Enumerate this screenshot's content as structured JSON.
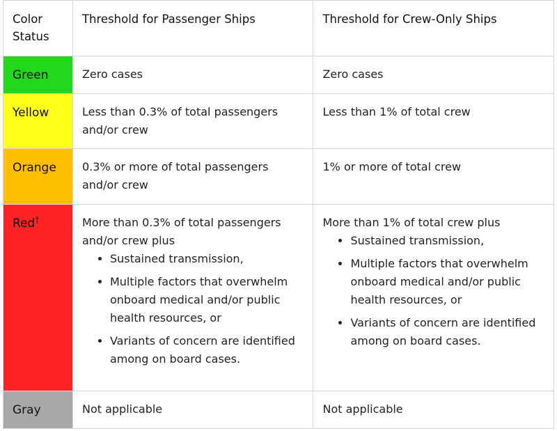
{
  "colors": {
    "green": "#22d81c",
    "yellow": "#ffff1c",
    "orange": "#ffbe00",
    "red": "#ff2323",
    "gray": "#a8a8a8"
  },
  "headers": {
    "status": "Color Status",
    "passenger": "Threshold for Passenger Ships",
    "crew": "Threshold for Crew-Only Ships"
  },
  "rows": {
    "green": {
      "status": "Green",
      "passenger": "Zero cases",
      "crew": "Zero cases"
    },
    "yellow": {
      "status": "Yellow",
      "passenger": "Less than 0.3% of total passengers and/or crew",
      "crew": "Less than 1% of total crew"
    },
    "orange": {
      "status": "Orange",
      "passenger": "0.3% or more of total passengers and/or crew",
      "crew": "1% or more of total crew"
    },
    "red": {
      "status": "Red",
      "dagger": "†",
      "passenger_intro": "More than 0.3% of total passengers and/or crew plus",
      "passenger_bullets": [
        "Sustained transmission,",
        "Multiple factors that overwhelm onboard medical and/or public health resources, or",
        "Variants of concern are identified among on board cases."
      ],
      "crew_intro": "More than 1% of total crew plus",
      "crew_bullets": [
        "Sustained transmission,",
        "Multiple factors that overwhelm onboard medical and/or public health resources, or",
        "Variants of concern are identified among on board cases."
      ]
    },
    "gray": {
      "status": "Gray",
      "passenger": "Not applicable",
      "crew": "Not applicable"
    }
  }
}
